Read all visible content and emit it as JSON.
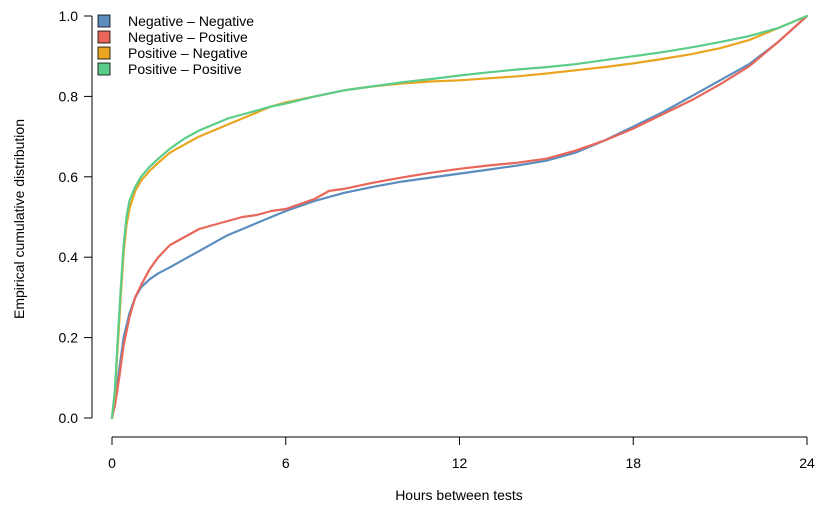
{
  "chart_data": {
    "type": "line",
    "title": "",
    "xlabel": "Hours between tests",
    "ylabel": "Empirical cumulative distribution",
    "xlim": [
      0,
      24
    ],
    "ylim": [
      0,
      1
    ],
    "x_ticks": [
      0,
      6,
      12,
      18,
      24
    ],
    "x_tick_labels": [
      "0",
      "6",
      "12",
      "18",
      "24"
    ],
    "y_ticks": [
      0,
      0.2,
      0.4,
      0.6,
      0.8,
      1.0
    ],
    "y_tick_labels": [
      "0.0",
      "0.2",
      "0.4",
      "0.6",
      "0.8",
      "1.0"
    ],
    "grid": false,
    "legend_position": "top-left",
    "series": [
      {
        "name": "Negative – Negative",
        "color": "#5B8DBE",
        "x": [
          0,
          0.1,
          0.25,
          0.4,
          0.6,
          0.8,
          1.0,
          1.3,
          1.6,
          2.0,
          2.5,
          3,
          3.5,
          4,
          4.5,
          5,
          5.5,
          6,
          7,
          8,
          9,
          10,
          11,
          12,
          13,
          14,
          15,
          16,
          17,
          18,
          19,
          20,
          21,
          22,
          23,
          24
        ],
        "y": [
          0,
          0.04,
          0.12,
          0.2,
          0.26,
          0.3,
          0.325,
          0.345,
          0.36,
          0.375,
          0.395,
          0.415,
          0.435,
          0.455,
          0.47,
          0.485,
          0.5,
          0.515,
          0.54,
          0.56,
          0.575,
          0.588,
          0.598,
          0.608,
          0.618,
          0.628,
          0.64,
          0.66,
          0.69,
          0.725,
          0.76,
          0.8,
          0.84,
          0.88,
          0.935,
          1.0
        ]
      },
      {
        "name": "Negative – Positive",
        "color": "#E8675A",
        "x": [
          0,
          0.1,
          0.25,
          0.4,
          0.6,
          0.8,
          1.0,
          1.3,
          1.6,
          2.0,
          2.5,
          3,
          3.5,
          4,
          4.5,
          5,
          5.5,
          6,
          7,
          7.5,
          8,
          9,
          10,
          11,
          12,
          13,
          14,
          15,
          16,
          17,
          18,
          19,
          20,
          21,
          22,
          23,
          24
        ],
        "y": [
          0,
          0.03,
          0.1,
          0.18,
          0.25,
          0.3,
          0.33,
          0.37,
          0.4,
          0.43,
          0.45,
          0.47,
          0.48,
          0.49,
          0.5,
          0.505,
          0.515,
          0.52,
          0.545,
          0.565,
          0.57,
          0.585,
          0.598,
          0.61,
          0.62,
          0.628,
          0.635,
          0.645,
          0.665,
          0.69,
          0.72,
          0.755,
          0.79,
          0.83,
          0.875,
          0.935,
          1.0
        ]
      },
      {
        "name": "Positive – Negative",
        "color": "#E9A520",
        "x": [
          0,
          0.1,
          0.2,
          0.3,
          0.4,
          0.5,
          0.6,
          0.8,
          1.0,
          1.3,
          1.6,
          2,
          2.5,
          3,
          3.5,
          4,
          4.5,
          5,
          5.5,
          6,
          7,
          8,
          9,
          10,
          11,
          12,
          13,
          14,
          15,
          16,
          17,
          18,
          19,
          20,
          21,
          22,
          23,
          24
        ],
        "y": [
          0,
          0.06,
          0.18,
          0.3,
          0.41,
          0.48,
          0.52,
          0.565,
          0.59,
          0.615,
          0.635,
          0.66,
          0.68,
          0.7,
          0.715,
          0.73,
          0.745,
          0.76,
          0.775,
          0.785,
          0.8,
          0.815,
          0.825,
          0.832,
          0.837,
          0.84,
          0.845,
          0.85,
          0.857,
          0.865,
          0.873,
          0.882,
          0.893,
          0.905,
          0.92,
          0.94,
          0.97,
          1.0
        ]
      },
      {
        "name": "Positive – Positive",
        "color": "#5BCC8A",
        "x": [
          0,
          0.1,
          0.2,
          0.3,
          0.4,
          0.5,
          0.6,
          0.8,
          1.0,
          1.3,
          1.6,
          2,
          2.5,
          3,
          3.5,
          4,
          4.5,
          5,
          5.5,
          6,
          7,
          8,
          9,
          10,
          11,
          12,
          13,
          14,
          15,
          16,
          17,
          18,
          19,
          20,
          21,
          22,
          23,
          24
        ],
        "y": [
          0,
          0.07,
          0.2,
          0.32,
          0.43,
          0.5,
          0.54,
          0.575,
          0.6,
          0.625,
          0.645,
          0.67,
          0.695,
          0.715,
          0.73,
          0.745,
          0.755,
          0.765,
          0.775,
          0.782,
          0.8,
          0.815,
          0.825,
          0.835,
          0.843,
          0.852,
          0.86,
          0.867,
          0.873,
          0.88,
          0.89,
          0.9,
          0.91,
          0.922,
          0.935,
          0.95,
          0.97,
          1.0
        ]
      }
    ]
  }
}
